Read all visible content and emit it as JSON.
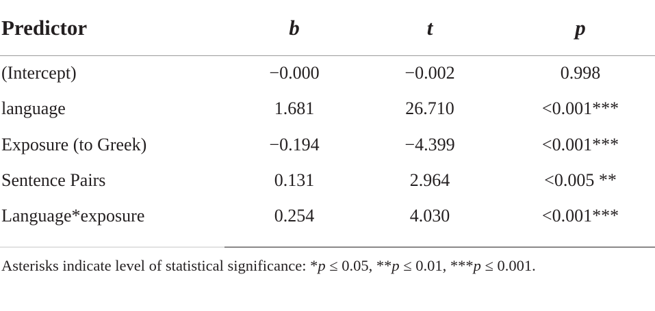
{
  "table": {
    "header": [
      "Predictor",
      "b",
      "t",
      "p"
    ],
    "rows": [
      [
        "(Intercept)",
        "−0.000",
        "−0.002",
        "0.998"
      ],
      [
        "language",
        "1.681",
        "26.710",
        "<0.001***"
      ],
      [
        "Exposure (to Greek)",
        "−0.194",
        "−4.399",
        "<0.001***"
      ],
      [
        "Sentence Pairs",
        "0.131",
        "2.964",
        "<0.005 **"
      ],
      [
        "Language*exposure",
        "0.254",
        "4.030",
        "<0.001***"
      ]
    ],
    "footnote": [
      "Asterisks indicate level of statistical significance: *",
      "p",
      " ≤ 0.05, **",
      "p",
      " ≤ 0.01, ***",
      "p",
      " ≤ 0.001."
    ]
  }
}
